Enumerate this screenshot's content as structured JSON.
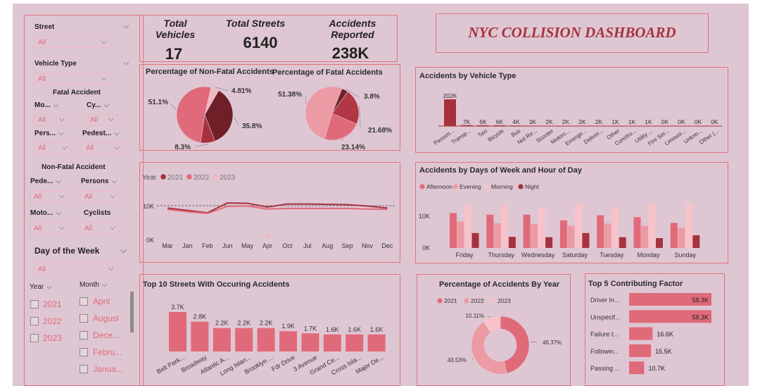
{
  "kpis": [
    {
      "label": "Total Vehicles",
      "value": "17"
    },
    {
      "label": "Total Streets",
      "value": "6140"
    },
    {
      "label": "Accidents Reported",
      "value": "238K"
    }
  ],
  "dashboard_title": "NYC COLLISION DASHBOARD",
  "filters": {
    "street": {
      "label": "Street",
      "value": "All"
    },
    "vehicle_type": {
      "label": "Vehicle Type",
      "value": "All"
    },
    "fatal_header": "Fatal Accident",
    "fatal": [
      {
        "label": "Mo...",
        "value": "All"
      },
      {
        "label": "Cy...",
        "value": "All"
      },
      {
        "label": "Pers...",
        "value": "All"
      },
      {
        "label": "Pedest...",
        "value": "All"
      }
    ],
    "nonfatal_header": "Non-Fatal Accident",
    "nonfatal": [
      {
        "label": "Pede...",
        "value": "All"
      },
      {
        "label": "Persons",
        "value": "All"
      },
      {
        "label": "Moto...",
        "value": "All"
      },
      {
        "label": "Cyclists",
        "value": "All"
      }
    ],
    "day_of_week": {
      "label": "Day of the Week",
      "value": "All"
    },
    "year": {
      "label": "Year",
      "options": [
        "2021",
        "2022",
        "2023"
      ]
    },
    "month": {
      "label": "Month",
      "options": [
        "April",
        "August",
        "Dece...",
        "Febru...",
        "Janua..."
      ]
    }
  },
  "chart_data": [
    {
      "id": "nonfatal_pie",
      "type": "pie",
      "title": "Percentage of Non-Fatal Accidents",
      "slices": [
        {
          "label": "4.81%",
          "value": 4.81,
          "color": "#f2b8bf"
        },
        {
          "label": "35.8%",
          "value": 35.8,
          "color": "#6e1f28"
        },
        {
          "label": "8.3%",
          "value": 8.3,
          "color": "#a6323e"
        },
        {
          "label": "51.1%",
          "value": 51.1,
          "color": "#e06a79"
        }
      ]
    },
    {
      "id": "fatal_pie",
      "type": "pie",
      "title": "Percentage of Fatal Accidents",
      "slices": [
        {
          "label": "3.8%",
          "value": 3.8,
          "color": "#6e1f28"
        },
        {
          "label": "21.68%",
          "value": 21.68,
          "color": "#b23744"
        },
        {
          "label": "23.14%",
          "value": 23.14,
          "color": "#e06a79"
        },
        {
          "label": "51.38%",
          "value": 51.38,
          "color": "#ec9aa4"
        }
      ]
    },
    {
      "id": "year_line",
      "type": "line",
      "legend_title": "Year",
      "categories": [
        "Mar",
        "Jan",
        "Feb",
        "Jun",
        "May",
        "Apr",
        "Oct",
        "Jul",
        "Aug",
        "Sep",
        "Nov",
        "Dec"
      ],
      "y_ticks": [
        "10K",
        "0K"
      ],
      "ylim": [
        0,
        20000
      ],
      "series": [
        {
          "name": "2021",
          "color": "#a6323e",
          "values": [
            9300,
            8600,
            7900,
            10800,
            10700,
            9600,
            10500,
            10500,
            10400,
            10300,
            9900,
            9300
          ]
        },
        {
          "name": "2022",
          "color": "#e06a79",
          "values": [
            8900,
            8200,
            7700,
            9800,
            9900,
            9000,
            9200,
            9200,
            9200,
            9200,
            9000,
            8900
          ]
        },
        {
          "name": "2023",
          "color": "#f2b8bf",
          "values": [
            null,
            null,
            null,
            null,
            null,
            200,
            null,
            null,
            null,
            null,
            null,
            null
          ]
        }
      ]
    },
    {
      "id": "vehicle_type_bar",
      "type": "bar",
      "title": "Accidents by Vehicle Type",
      "categories": [
        "Passen...",
        "Transp...",
        "Taxi",
        "Bicycle",
        "Bus",
        "Not Re...",
        "Scooter",
        "Motorc...",
        "Emerge...",
        "Deliver...",
        "Other",
        "Constru...",
        "Utility ...",
        "Fire Ser...",
        "Limousi...",
        "Unkno...",
        "Other (..."
      ],
      "labels": [
        "202K",
        "7K",
        "6K",
        "6K",
        "4K",
        "3K",
        "2K",
        "2K",
        "2K",
        "2K",
        "1K",
        "1K",
        "1K",
        "0K",
        "0K",
        "0K",
        "0K"
      ],
      "values": [
        202000,
        7000,
        6000,
        6000,
        4000,
        3000,
        2000,
        2000,
        2000,
        2000,
        1000,
        1000,
        1000,
        0,
        0,
        0,
        0
      ],
      "color": "#a6323e"
    },
    {
      "id": "days_hour_bar",
      "type": "bar",
      "title": "Accidents by Days of Week and Hour of Day",
      "categories": [
        "Friday",
        "Thursday",
        "Wednesday",
        "Saturday",
        "Tuesday",
        "Monday",
        "Sunday"
      ],
      "y_ticks": [
        "10K",
        "0K"
      ],
      "ylim": [
        0,
        20000
      ],
      "series": [
        {
          "name": "Afternoon",
          "color": "#e06a79",
          "values": [
            11000,
            10500,
            10500,
            8700,
            10300,
            9700,
            7900
          ]
        },
        {
          "name": "Evening",
          "color": "#ec9aa4",
          "values": [
            8300,
            7800,
            7600,
            7000,
            7700,
            7000,
            6300
          ]
        },
        {
          "name": "Morning",
          "color": "#f7c3c9",
          "values": [
            13300,
            13300,
            12700,
            13900,
            12800,
            14000,
            13900
          ]
        },
        {
          "name": "Night",
          "color": "#a6323e",
          "values": [
            4700,
            3500,
            3400,
            4700,
            3400,
            3100,
            4000
          ]
        }
      ]
    },
    {
      "id": "top_streets_bar",
      "type": "bar",
      "title": "Top 10 Streets With Occuring Accidents",
      "categories": [
        "Belt Park...",
        "Broadway",
        "Atlantic A...",
        "Long Islan...",
        "Brooklyn ...",
        "Fdr Drive",
        "3 Avenue",
        "Grand Ce...",
        "Cross Isla...",
        "Major De..."
      ],
      "labels": [
        "3.7K",
        "2.8K",
        "2.2K",
        "2.2K",
        "2.2K",
        "1.9K",
        "1.7K",
        "1.6K",
        "1.6K",
        "1.6K"
      ],
      "values": [
        3700,
        2800,
        2200,
        2200,
        2200,
        1900,
        1700,
        1600,
        1600,
        1600
      ],
      "color": "#e06a79"
    },
    {
      "id": "year_donut",
      "type": "pie",
      "title": "Percentage of Accidents By Year",
      "legend": [
        "2021",
        "2022",
        "2023"
      ],
      "slices": [
        {
          "label": "46.37%",
          "value": 46.37,
          "color": "#e06a79"
        },
        {
          "label": "43.53%",
          "value": 43.53,
          "color": "#ec9aa4"
        },
        {
          "label": "10.11%",
          "value": 10.11,
          "color": "#f7c3c9"
        }
      ]
    },
    {
      "id": "factors_bar",
      "type": "bar",
      "title": "Top 5 Contributing Factor",
      "categories": [
        "Driver In...",
        "Unspecif...",
        "Failure t...",
        "Followin...",
        "Passing ..."
      ],
      "labels": [
        "58.3K",
        "58.3K",
        "16.6K",
        "15.5K",
        "10.7K"
      ],
      "values": [
        58300,
        58300,
        16600,
        15500,
        10700
      ],
      "color": "#e06a79"
    }
  ]
}
